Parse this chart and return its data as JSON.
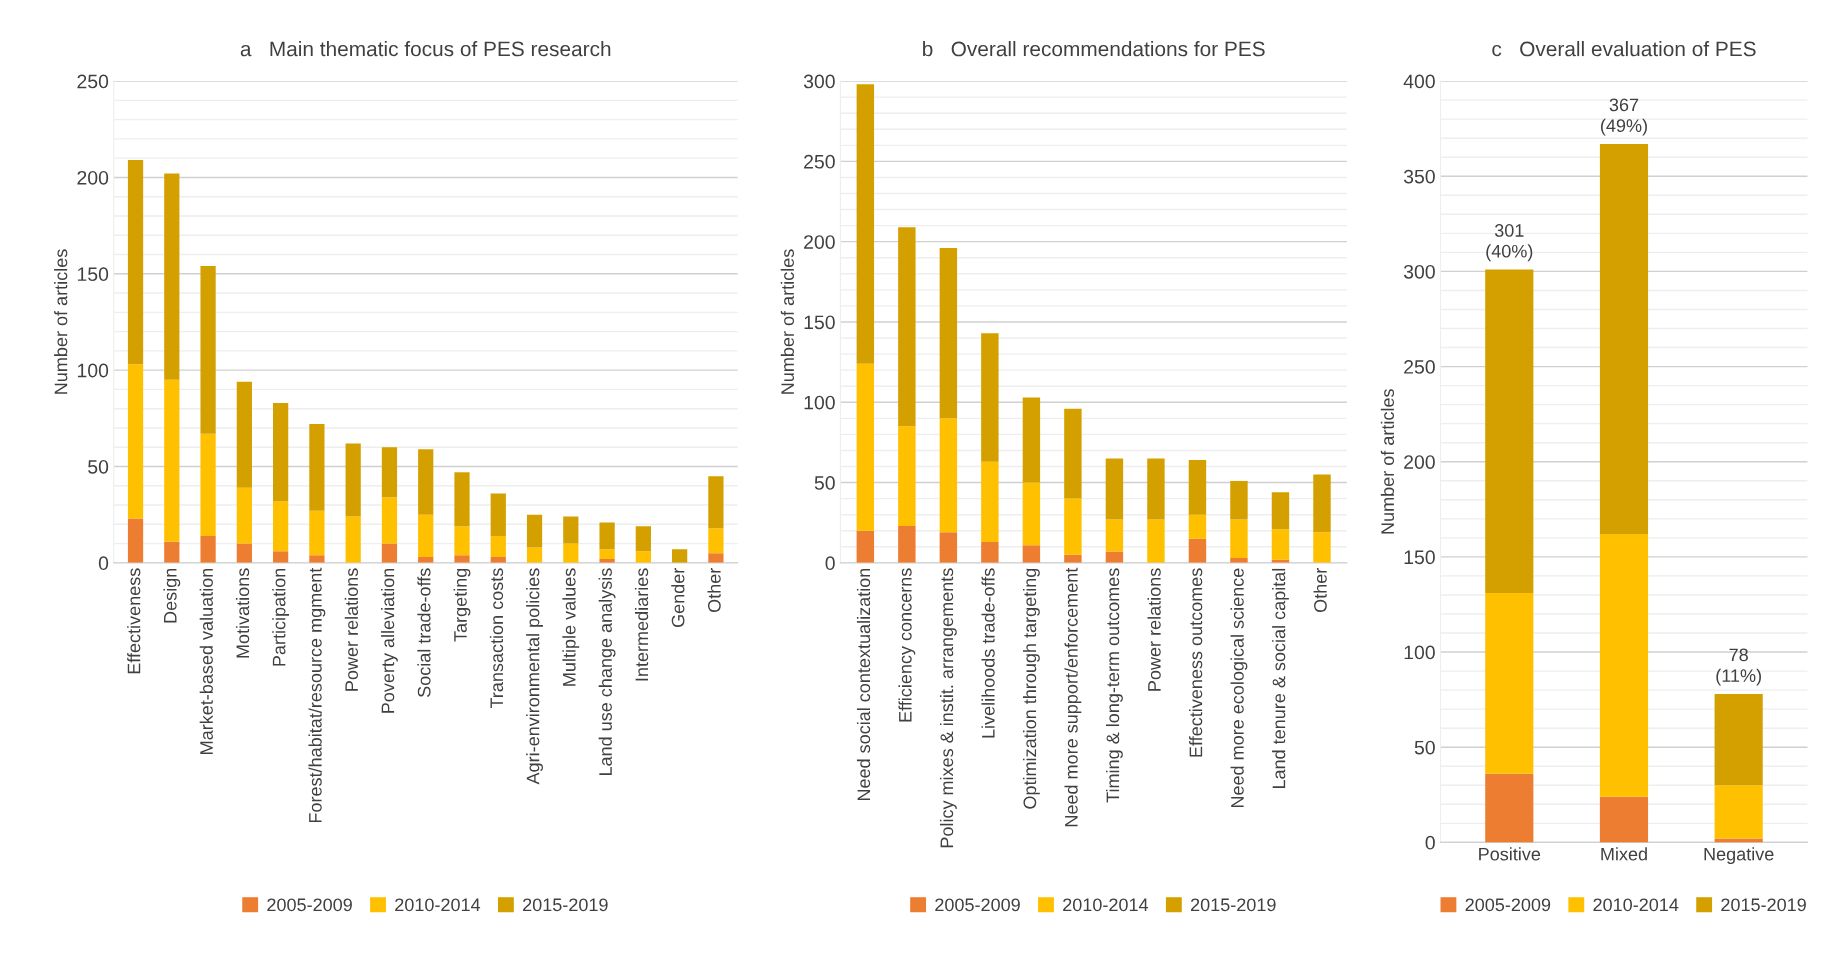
{
  "chart_data": [
    {
      "type": "bar",
      "stacked": true,
      "title": "a   Main thematic focus of PES research",
      "ylabel": "Number of articles",
      "categories": [
        "Effectiveness",
        "Design",
        "Market-based valuation",
        "Motivations",
        "Participation",
        "Forest/habitat/resource mgment",
        "Power relations",
        "Poverty alleviation",
        "Social trade-offs",
        "Targeting",
        "Transaction costs",
        "Agri-environmental policies",
        "Multiple values",
        "Land use change analysis",
        "Intermediaries",
        "Gender",
        "Other"
      ],
      "series": [
        {
          "name": "2005-2009",
          "color": "#ed7d31",
          "values": [
            23,
            11,
            14,
            10,
            6,
            4,
            0,
            10,
            3,
            4,
            3,
            0,
            0,
            2,
            0,
            0,
            5
          ]
        },
        {
          "name": "2010-2014",
          "color": "#ffc000",
          "values": [
            80,
            84,
            53,
            29,
            26,
            23,
            24,
            24,
            22,
            15,
            11,
            8,
            10,
            5,
            6,
            0,
            13
          ]
        },
        {
          "name": "2015-2019",
          "color": "#d4a000",
          "values": [
            106,
            107,
            87,
            55,
            51,
            45,
            38,
            26,
            34,
            28,
            22,
            17,
            14,
            14,
            13,
            7,
            27
          ]
        }
      ],
      "ylim": [
        0,
        250
      ],
      "yticks": [
        0,
        50,
        100,
        150,
        200,
        250
      ],
      "grid": "y",
      "legend": "bottom"
    },
    {
      "type": "bar",
      "stacked": true,
      "title": "b   Overall recommendations for PES",
      "ylabel": "Number of articles",
      "categories": [
        "Need social contextualization",
        "Efficiency concerns",
        "Policy mixes & instit. arrangements",
        "Livelihoods trade-offs",
        "Optimization through targeting",
        "Need more support/enforcement",
        "Timing & long-term outcomes",
        "Power relations",
        "Effectiveness outcomes",
        "Need more ecological science",
        "Land tenure & social capital",
        "Other"
      ],
      "series": [
        {
          "name": "2005-2009",
          "color": "#ed7d31",
          "values": [
            20,
            23,
            19,
            13,
            11,
            5,
            7,
            0,
            15,
            3,
            2,
            0
          ]
        },
        {
          "name": "2010-2014",
          "color": "#ffc000",
          "values": [
            104,
            62,
            71,
            50,
            39,
            35,
            20,
            27,
            15,
            24,
            19,
            19
          ]
        },
        {
          "name": "2015-2019",
          "color": "#d4a000",
          "values": [
            174,
            124,
            106,
            80,
            53,
            56,
            38,
            38,
            34,
            24,
            23,
            36
          ]
        }
      ],
      "ylim": [
        0,
        300
      ],
      "yticks": [
        0,
        50,
        100,
        150,
        200,
        250,
        300
      ],
      "grid": "y",
      "legend": "bottom"
    },
    {
      "type": "bar",
      "stacked": true,
      "title": "c   Overall evaluation of PES",
      "ylabel": "Number of articles",
      "categories": [
        "Positive",
        "Mixed",
        "Negative"
      ],
      "series": [
        {
          "name": "2005-2009",
          "color": "#ed7d31",
          "values": [
            36,
            24,
            2
          ]
        },
        {
          "name": "2010-2014",
          "color": "#ffc000",
          "values": [
            95,
            138,
            28
          ]
        },
        {
          "name": "2015-2019",
          "color": "#d4a000",
          "values": [
            170,
            205,
            48
          ]
        }
      ],
      "totals": [
        "301\n(40%)",
        "367\n(49%)",
        "78\n(11%)"
      ],
      "ylim": [
        0,
        400
      ],
      "yticks": [
        0,
        50,
        100,
        150,
        200,
        250,
        300,
        350,
        400
      ],
      "grid": "y",
      "legend": "bottom"
    }
  ]
}
